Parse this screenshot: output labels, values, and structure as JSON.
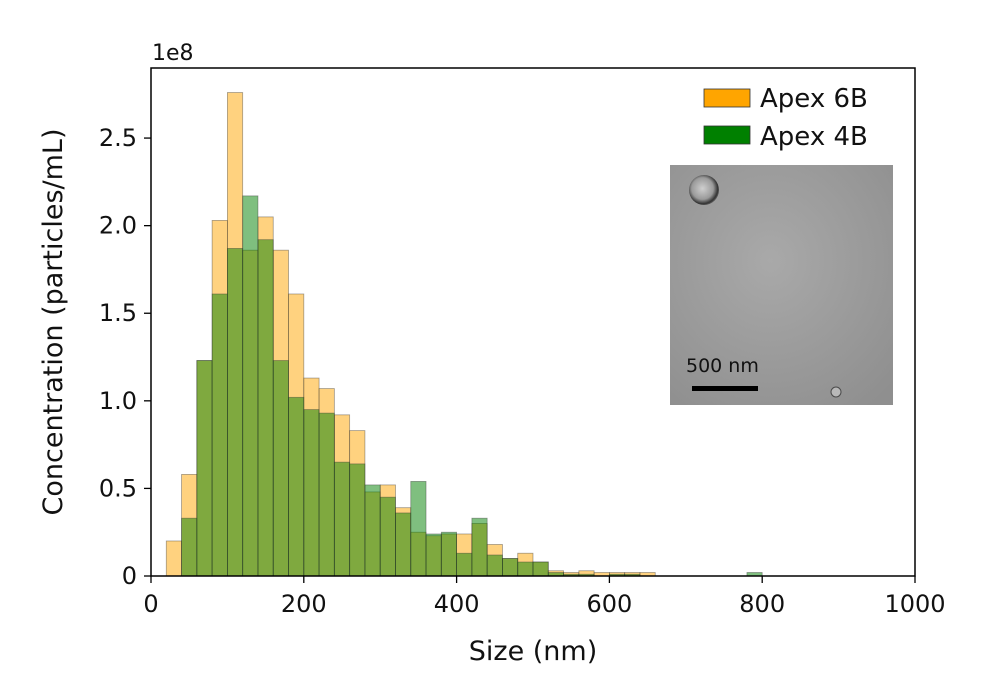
{
  "chart_data": {
    "type": "bar",
    "xlabel": "Size (nm)",
    "ylabel": "Concentration (particles/mL)",
    "scale_label": "1e8",
    "xlim": [
      0,
      1000
    ],
    "ylim": [
      0,
      2.9
    ],
    "x_ticks": [
      "0",
      "200",
      "400",
      "600",
      "800",
      "1000"
    ],
    "y_ticks": [
      "0",
      "0.5",
      "1.0",
      "1.5",
      "2.0",
      "2.5"
    ],
    "bin_width_nm": 20,
    "legend_position": "top-right",
    "series": [
      {
        "name": "Apex 6B",
        "color": "#FFA500",
        "bins": [
          [
            20,
            0.2
          ],
          [
            40,
            0.58
          ],
          [
            60,
            1.23
          ],
          [
            80,
            2.03
          ],
          [
            100,
            2.76
          ],
          [
            120,
            1.86
          ],
          [
            140,
            2.05
          ],
          [
            160,
            1.86
          ],
          [
            180,
            1.61
          ],
          [
            200,
            1.13
          ],
          [
            220,
            1.07
          ],
          [
            240,
            0.92
          ],
          [
            260,
            0.83
          ],
          [
            280,
            0.48
          ],
          [
            300,
            0.52
          ],
          [
            320,
            0.39
          ],
          [
            340,
            0.25
          ],
          [
            360,
            0.23
          ],
          [
            380,
            0.24
          ],
          [
            400,
            0.24
          ],
          [
            420,
            0.3
          ],
          [
            440,
            0.18
          ],
          [
            460,
            0.1
          ],
          [
            480,
            0.13
          ],
          [
            500,
            0.08
          ],
          [
            520,
            0.03
          ],
          [
            540,
            0.02
          ],
          [
            560,
            0.03
          ],
          [
            580,
            0.02
          ],
          [
            600,
            0.02
          ],
          [
            620,
            0.02
          ],
          [
            640,
            0.02
          ]
        ]
      },
      {
        "name": "Apex 4B",
        "color": "#008000",
        "bins": [
          [
            40,
            0.33
          ],
          [
            60,
            1.23
          ],
          [
            80,
            1.61
          ],
          [
            100,
            1.87
          ],
          [
            120,
            2.17
          ],
          [
            140,
            1.92
          ],
          [
            160,
            1.23
          ],
          [
            180,
            1.02
          ],
          [
            200,
            0.95
          ],
          [
            220,
            0.93
          ],
          [
            240,
            0.65
          ],
          [
            260,
            0.64
          ],
          [
            280,
            0.52
          ],
          [
            300,
            0.45
          ],
          [
            320,
            0.36
          ],
          [
            340,
            0.54
          ],
          [
            360,
            0.24
          ],
          [
            380,
            0.25
          ],
          [
            400,
            0.13
          ],
          [
            420,
            0.33
          ],
          [
            440,
            0.12
          ],
          [
            460,
            0.1
          ],
          [
            480,
            0.08
          ],
          [
            500,
            0.08
          ],
          [
            520,
            0.02
          ],
          [
            540,
            0.01
          ],
          [
            560,
            0.01
          ],
          [
            600,
            0.01
          ],
          [
            620,
            0.01
          ],
          [
            780,
            0.02
          ]
        ]
      }
    ],
    "inset": {
      "scalebar_label": "500 nm"
    }
  }
}
